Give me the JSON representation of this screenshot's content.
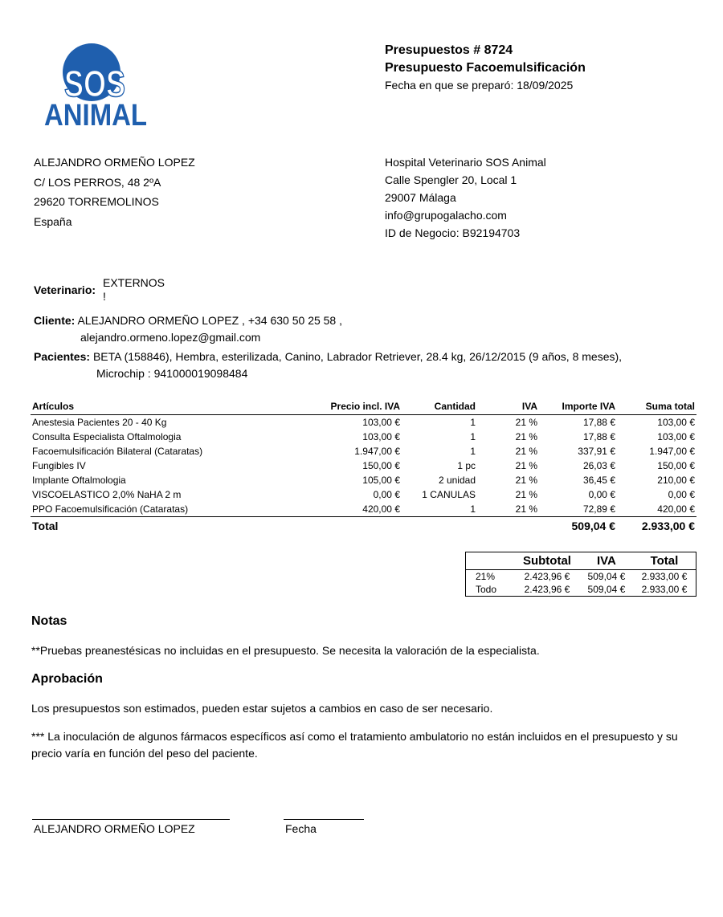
{
  "logo": {
    "text_top": "SOS",
    "text_bottom": "ANIMAL",
    "color": "#1f5fae"
  },
  "header": {
    "number": "Presupuestos # 8724",
    "title": "Presupuesto Facoemulsificación",
    "date": "Fecha en que se preparó: 18/09/2025"
  },
  "client_address": [
    "ALEJANDRO ORMEÑO LOPEZ",
    "C/ LOS PERROS, 48 2ºA",
    "29620 TORREMOLINOS",
    "España"
  ],
  "hospital": [
    "Hospital Veterinario SOS Animal",
    "Calle Spengler 20, Local 1",
    "29007 Málaga",
    "info@grupogalacho.com",
    "ID de Negocio: B92194703"
  ],
  "veterinario": {
    "label": "Veterinario:",
    "value": "EXTERNOS",
    "value2": "!"
  },
  "cliente": {
    "label": "Cliente:",
    "line1": "ALEJANDRO ORMEÑO LOPEZ , +34 630 50 25 58 ,",
    "line2": "alejandro.ormeno.lopez@gmail.com"
  },
  "pacientes": {
    "label": "Pacientes:",
    "line1": "BETA (158846), Hembra, esterilizada, Canino, Labrador Retriever, 28.4 kg, 26/12/2015 (9 años, 8 meses),",
    "line2": "Microchip : 941000019098484"
  },
  "items": {
    "headers": [
      "Artículos",
      "Precio incl. IVA",
      "Cantidad",
      "IVA",
      "Importe IVA",
      "Suma total"
    ],
    "rows": [
      [
        "Anestesia Pacientes 20 - 40 Kg",
        "103,00 €",
        "1",
        "21 %",
        "17,88 €",
        "103,00 €"
      ],
      [
        "Consulta Especialista Oftalmologia",
        "103,00 €",
        "1",
        "21 %",
        "17,88 €",
        "103,00 €"
      ],
      [
        "Facoemulsificación Bilateral (Cataratas)",
        "1.947,00 €",
        "1",
        "21 %",
        "337,91 €",
        "1.947,00 €"
      ],
      [
        "Fungibles IV",
        "150,00 €",
        "1 pc",
        "21 %",
        "26,03 €",
        "150,00 €"
      ],
      [
        "Implante Oftalmologia",
        "105,00 €",
        "2 unidad",
        "21 %",
        "36,45 €",
        "210,00 €"
      ],
      [
        "VISCOELASTICO 2,0% NaHA 2 m",
        "0,00 €",
        "1 CANULAS",
        "21 %",
        "0,00 €",
        "0,00 €"
      ],
      [
        "PPO Facoemulsificación (Cataratas)",
        "420,00 €",
        "1",
        "21 %",
        "72,89 €",
        "420,00 €"
      ]
    ],
    "total_label": "Total",
    "total_iva": "509,04 €",
    "total_sum": "2.933,00 €"
  },
  "summary": {
    "headers": [
      "",
      "Subtotal",
      "IVA",
      "Total"
    ],
    "rows": [
      [
        "21%",
        "2.423,96 €",
        "509,04 €",
        "2.933,00 €"
      ],
      [
        "Todo",
        "2.423,96 €",
        "509,04 €",
        "2.933,00 €"
      ]
    ]
  },
  "notas": {
    "title": "Notas",
    "text": "**Pruebas preanestésicas no incluidas en el presupuesto. Se necesita la valoración de la especialista."
  },
  "aprobacion": {
    "title": "Aprobación",
    "text1": "Los presupuestos son estimados, pueden estar sujetos a cambios en caso de ser necesario.",
    "text2": "*** La inoculación de algunos fármacos específicos así como el tratamiento ambulatorio no están incluidos en el presupuesto y su precio varía en función del peso del paciente."
  },
  "signature": {
    "name": "ALEJANDRO ORMEÑO LOPEZ",
    "date_label": "Fecha"
  }
}
